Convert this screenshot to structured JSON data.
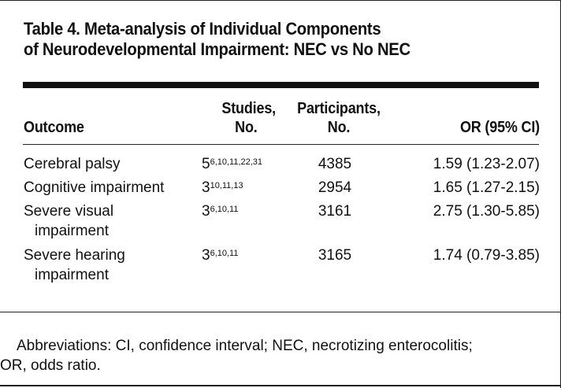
{
  "table": {
    "title_line1": "Table 4. Meta-analysis of Individual Components",
    "title_line2": "of Neurodevelopmental Impairment: NEC vs No NEC",
    "headers": {
      "outcome": "Outcome",
      "studies_line1": "Studies,",
      "studies_line2": "No.",
      "participants_line1": "Participants,",
      "participants_line2": "No.",
      "or": "OR (95% CI)"
    },
    "rows": [
      {
        "outcome_line1": "Cerebral palsy",
        "outcome_line2": "",
        "studies": "5",
        "refs": "6,10,11,22,31",
        "participants": "4385",
        "or": "1.59 (1.23-2.07)"
      },
      {
        "outcome_line1": "Cognitive impairment",
        "outcome_line2": "",
        "studies": "3",
        "refs": "10,11,13",
        "participants": "2954",
        "or": "1.65 (1.27-2.15)"
      },
      {
        "outcome_line1": "Severe visual",
        "outcome_line2": "impairment",
        "studies": "3",
        "refs": "6,10,11",
        "participants": "3161",
        "or": "2.75 (1.30-5.85)"
      },
      {
        "outcome_line1": "Severe hearing",
        "outcome_line2": "impairment",
        "studies": "3",
        "refs": "6,10,11",
        "participants": "3165",
        "or": "1.74 (0.79-3.85)"
      }
    ],
    "footnote_line1": "Abbreviations: CI, confidence interval; NEC, necrotizing enterocolitis;",
    "footnote_line2": "OR, odds ratio."
  }
}
